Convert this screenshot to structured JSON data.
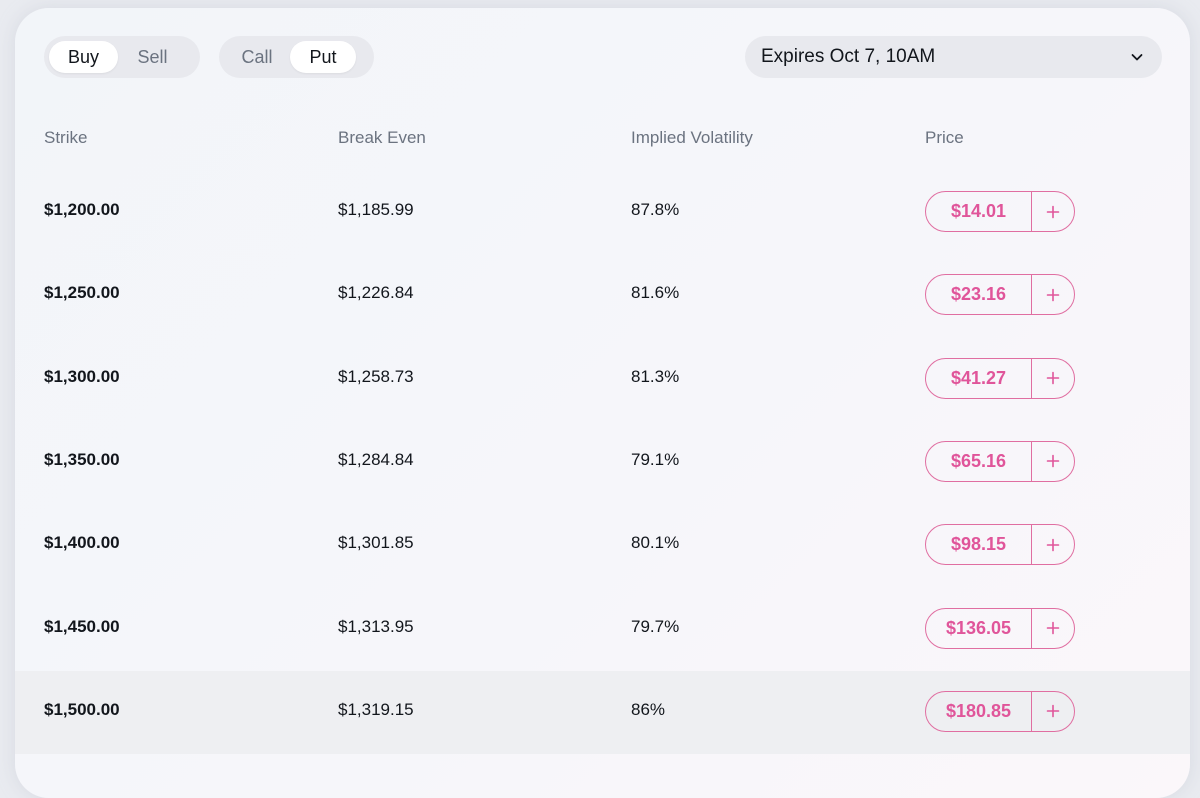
{
  "controls": {
    "side": {
      "options": [
        "Buy",
        "Sell"
      ],
      "selected": "Buy"
    },
    "type": {
      "options": [
        "Call",
        "Put"
      ],
      "selected": "Put"
    },
    "expiry": {
      "label": "Expires Oct 7, 10AM",
      "icon": "chevron-down-icon"
    }
  },
  "table": {
    "headers": {
      "strike": "Strike",
      "break_even": "Break Even",
      "iv": "Implied Volatility",
      "price": "Price"
    },
    "rows": [
      {
        "strike": "$1,200.00",
        "break_even": "$1,185.99",
        "iv": "87.8%",
        "price": "$14.01"
      },
      {
        "strike": "$1,250.00",
        "break_even": "$1,226.84",
        "iv": "81.6%",
        "price": "$23.16"
      },
      {
        "strike": "$1,300.00",
        "break_even": "$1,258.73",
        "iv": "81.3%",
        "price": "$41.27"
      },
      {
        "strike": "$1,350.00",
        "break_even": "$1,284.84",
        "iv": "79.1%",
        "price": "$65.16"
      },
      {
        "strike": "$1,400.00",
        "break_even": "$1,301.85",
        "iv": "80.1%",
        "price": "$98.15"
      },
      {
        "strike": "$1,450.00",
        "break_even": "$1,313.95",
        "iv": "79.7%",
        "price": "$136.05"
      },
      {
        "strike": "$1,500.00",
        "break_even": "$1,319.15",
        "iv": "86%",
        "price": "$180.85"
      }
    ],
    "highlighted_row": 6,
    "add_icon": "plus-icon"
  },
  "colors": {
    "accent": "#e0559a",
    "text": "#12161c",
    "muted": "#6b7380"
  }
}
